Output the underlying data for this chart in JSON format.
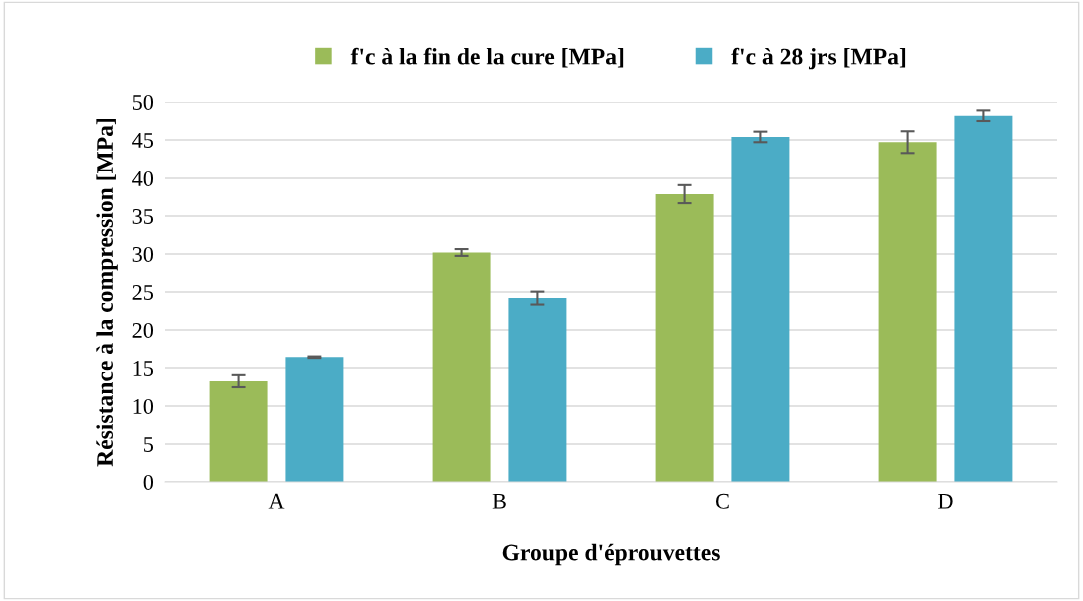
{
  "chart_data": {
    "type": "bar",
    "xlabel": "Groupe d'éprouvettes",
    "ylabel": "Résistance à la compression [MPa]",
    "categories": [
      "A",
      "B",
      "C",
      "D"
    ],
    "series": [
      {
        "name": "f'c à la fin de la cure [MPa]",
        "color": "#9bbb59",
        "values": [
          13.3,
          30.2,
          37.9,
          44.7
        ],
        "errors": [
          0.8,
          0.45,
          1.2,
          1.45
        ]
      },
      {
        "name": "f'c à 28 jrs [MPa]",
        "color": "#4bacc6",
        "values": [
          16.4,
          24.2,
          45.4,
          48.2
        ],
        "errors": [
          0.1,
          0.85,
          0.7,
          0.7
        ]
      }
    ],
    "ylim": [
      0,
      50
    ],
    "yticks": [
      0,
      5,
      10,
      15,
      20,
      25,
      30,
      35,
      40,
      45,
      50
    ],
    "grid": "y",
    "legend": "top"
  }
}
